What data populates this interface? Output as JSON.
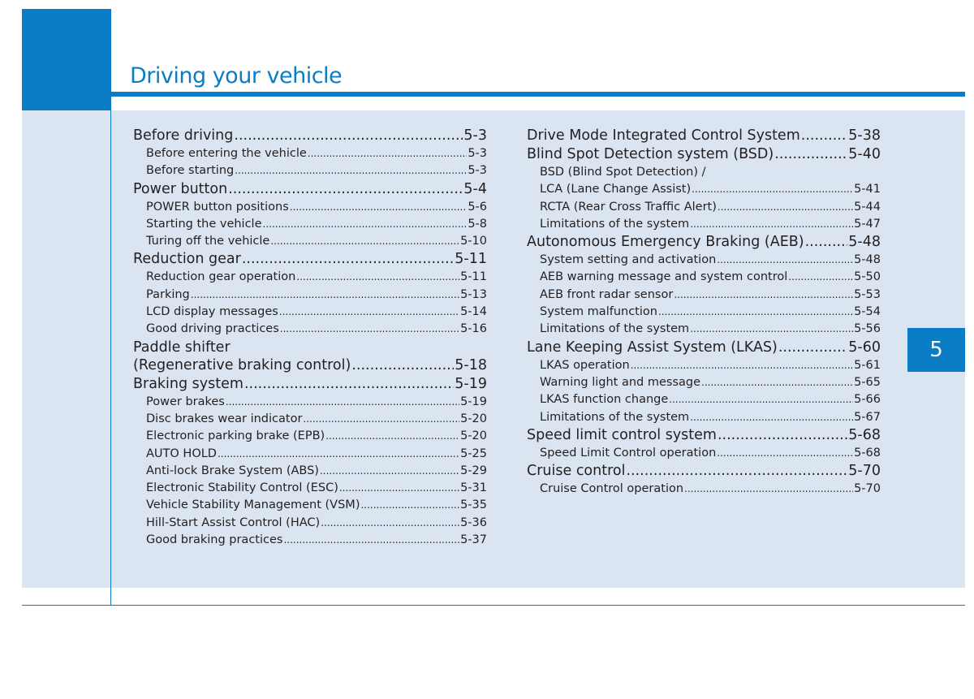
{
  "header": {
    "title": "Driving your vehicle",
    "chapter_number": "5"
  },
  "colors": {
    "accent": "#0a7dc6",
    "panel": "#dbe5f1"
  },
  "toc_left": [
    {
      "level": "main",
      "label": "Before driving",
      "page": "5-3"
    },
    {
      "level": "sub",
      "label": "Before entering the vehicle ",
      "page": "5-3"
    },
    {
      "level": "sub",
      "label": "Before starting",
      "page": "5-3"
    },
    {
      "level": "main",
      "label": "Power button ",
      "page": "5-4"
    },
    {
      "level": "sub",
      "label": "POWER button positions ",
      "page": "5-6"
    },
    {
      "level": "sub",
      "label": "Starting the vehicle",
      "page": "5-8"
    },
    {
      "level": "sub",
      "label": "Turing off the vehicle ",
      "page": "5-10"
    },
    {
      "level": "main",
      "label": "Reduction gear ",
      "page": "5-11"
    },
    {
      "level": "sub",
      "label": "Reduction gear operation ",
      "page": "5-11"
    },
    {
      "level": "sub",
      "label": "Parking",
      "page": "5-13"
    },
    {
      "level": "sub",
      "label": "LCD display messages",
      "page": "5-14"
    },
    {
      "level": "sub",
      "label": "Good driving practices ",
      "page": "5-16"
    },
    {
      "level": "wrap-line",
      "label": "Paddle shifter",
      "page": ""
    },
    {
      "level": "main",
      "label": "(Regenerative braking control) ",
      "page": "5-18"
    },
    {
      "level": "main",
      "label": "Braking system",
      "page": "5-19"
    },
    {
      "level": "sub",
      "label": "Power brakes ",
      "page": "5-19"
    },
    {
      "level": "sub",
      "label": "Disc brakes wear indicator ",
      "page": "5-20"
    },
    {
      "level": "sub",
      "label": "Electronic parking brake (EPB) ",
      "page": "5-20"
    },
    {
      "level": "sub",
      "label": "AUTO HOLD ",
      "page": "5-25"
    },
    {
      "level": "sub",
      "label": "Anti-lock Brake System (ABS) ",
      "page": "5-29"
    },
    {
      "level": "sub",
      "label": "Electronic Stability Control (ESC)",
      "page": "5-31"
    },
    {
      "level": "sub",
      "label": "Vehicle Stability Management (VSM)",
      "page": "5-35"
    },
    {
      "level": "sub",
      "label": "Hill-Start Assist Control (HAC) ",
      "page": "5-36"
    },
    {
      "level": "sub",
      "label": "Good braking practices",
      "page": "5-37"
    }
  ],
  "toc_right": [
    {
      "level": "main",
      "label": "Drive Mode Integrated Control System",
      "page": "5-38"
    },
    {
      "level": "main",
      "label": "Blind Spot Detection system (BSD) ",
      "page": "5-40"
    },
    {
      "level": "sub-wrap",
      "label": "BSD (Blind Spot Detection) /",
      "page": ""
    },
    {
      "level": "sub",
      "label": "LCA (Lane Change Assist)",
      "page": "5-41"
    },
    {
      "level": "sub",
      "label": "RCTA (Rear Cross Traffic Alert) ",
      "page": "5-44"
    },
    {
      "level": "sub",
      "label": "Limitations of the system ",
      "page": "5-47"
    },
    {
      "level": "main",
      "label": "Autonomous Emergency Braking (AEB)",
      "page": "5-48"
    },
    {
      "level": "sub",
      "label": "System setting and activation",
      "page": "5-48"
    },
    {
      "level": "sub",
      "label": "AEB warning message and system control",
      "page": "5-50"
    },
    {
      "level": "sub",
      "label": "AEB front radar sensor",
      "page": "5-53"
    },
    {
      "level": "sub",
      "label": "System malfunction ",
      "page": "5-54"
    },
    {
      "level": "sub",
      "label": "Limitations of the system ",
      "page": "5-56"
    },
    {
      "level": "main",
      "label": "Lane Keeping Assist System (LKAS)",
      "page": "5-60"
    },
    {
      "level": "sub",
      "label": "LKAS operation",
      "page": "5-61"
    },
    {
      "level": "sub",
      "label": "Warning light and message ",
      "page": "5-65"
    },
    {
      "level": "sub",
      "label": "LKAS function change ",
      "page": "5-66"
    },
    {
      "level": "sub",
      "label": "Limitations of the system ",
      "page": "5-67"
    },
    {
      "level": "main",
      "label": "Speed limit control system ",
      "page": "5-68"
    },
    {
      "level": "sub",
      "label": "Speed Limit Control operation ",
      "page": "5-68"
    },
    {
      "level": "main",
      "label": "Cruise control ",
      "page": "5-70"
    },
    {
      "level": "sub",
      "label": "Cruise Control operation ",
      "page": "5-70"
    }
  ]
}
